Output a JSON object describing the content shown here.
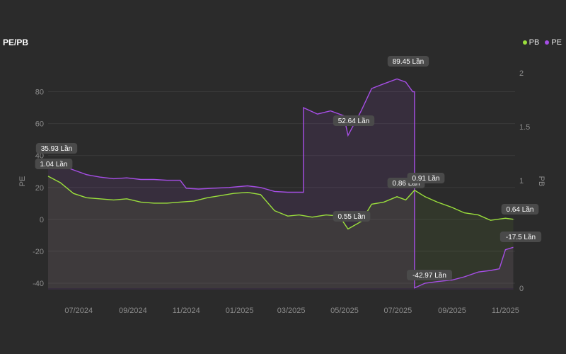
{
  "chart_data": {
    "type": "line",
    "title": "PE/PB",
    "legend": [
      {
        "name": "PB",
        "color": "#9be03c"
      },
      {
        "name": "PE",
        "color": "#a64ee6"
      }
    ],
    "legend_position": "top-right",
    "x_ticks": [
      "07/2024",
      "09/2024",
      "11/2024",
      "01/2025",
      "03/2025",
      "05/2025",
      "07/2025",
      "09/2025",
      "11/2025"
    ],
    "y_left": {
      "label": "PE",
      "ticks": [
        80,
        60,
        40,
        20,
        0,
        -20,
        -40
      ],
      "range": [
        -44,
        94
      ]
    },
    "y_right": {
      "label": "PB",
      "ticks": [
        2,
        1.5,
        1,
        0.5,
        0
      ],
      "range": [
        0,
        2
      ]
    },
    "series": [
      {
        "name": "PE",
        "axis": "left",
        "color": "#a64ee6",
        "x": [
          "2024-05-27",
          "2024-06-10",
          "2024-06-25",
          "2024-07-10",
          "2024-07-25",
          "2024-08-10",
          "2024-08-25",
          "2024-09-10",
          "2024-09-25",
          "2024-10-10",
          "2024-10-25",
          "2024-11-01",
          "2024-11-15",
          "2024-12-01",
          "2024-12-20",
          "2025-01-10",
          "2025-01-25",
          "2025-02-10",
          "2025-02-25",
          "2025-03-01",
          "2025-03-15",
          "2025-03-31",
          "2025-04-15",
          "2025-04-30",
          "2025-05-05",
          "2025-05-20",
          "2025-06-01",
          "2025-06-15",
          "2025-06-30",
          "2025-07-10",
          "2025-07-18",
          "2025-07-20",
          "2025-08-01",
          "2025-08-15",
          "2025-09-01",
          "2025-09-15",
          "2025-10-01",
          "2025-10-15",
          "2025-10-25",
          "2025-11-01",
          "2025-11-10"
        ],
        "values": [
          35.93,
          34,
          31,
          28,
          26.5,
          25.5,
          26,
          25,
          25,
          24.5,
          24.5,
          19.5,
          19,
          19.5,
          20,
          21,
          20,
          17.5,
          17,
          17,
          70,
          66,
          68,
          65,
          52.64,
          68,
          82,
          85,
          88,
          86,
          80,
          -42.97,
          -40,
          -39,
          -38,
          -36,
          -33,
          -32,
          -31,
          -19,
          -17.5
        ]
      },
      {
        "name": "PB",
        "axis": "right",
        "color": "#9be03c",
        "x": [
          "2024-05-27",
          "2024-06-10",
          "2024-06-25",
          "2024-07-10",
          "2024-07-25",
          "2024-08-10",
          "2024-08-25",
          "2024-09-10",
          "2024-09-25",
          "2024-10-10",
          "2024-10-25",
          "2024-11-10",
          "2024-11-25",
          "2024-12-10",
          "2024-12-25",
          "2025-01-10",
          "2025-01-25",
          "2025-02-10",
          "2025-02-25",
          "2025-03-10",
          "2025-03-25",
          "2025-04-10",
          "2025-04-25",
          "2025-05-05",
          "2025-05-20",
          "2025-06-01",
          "2025-06-15",
          "2025-06-30",
          "2025-07-10",
          "2025-07-20",
          "2025-08-01",
          "2025-08-15",
          "2025-09-01",
          "2025-09-15",
          "2025-10-01",
          "2025-10-15",
          "2025-11-01",
          "2025-11-10"
        ],
        "values": [
          1.04,
          0.98,
          0.88,
          0.84,
          0.83,
          0.82,
          0.83,
          0.8,
          0.79,
          0.79,
          0.8,
          0.81,
          0.84,
          0.86,
          0.88,
          0.89,
          0.87,
          0.72,
          0.67,
          0.68,
          0.66,
          0.68,
          0.67,
          0.55,
          0.62,
          0.78,
          0.8,
          0.85,
          0.82,
          0.91,
          0.85,
          0.8,
          0.75,
          0.7,
          0.68,
          0.63,
          0.65,
          0.64
        ]
      }
    ],
    "annotations": [
      {
        "series": "PE",
        "text": "35.93 Lần"
      },
      {
        "series": "PB",
        "text": "1.04 Lần"
      },
      {
        "series": "PE",
        "text": "89.45 Lần"
      },
      {
        "series": "PE",
        "text": "52.64 Lần"
      },
      {
        "series": "PB",
        "text": "0.55 Lần"
      },
      {
        "series": "PB",
        "text": "0.86 Lần"
      },
      {
        "series": "PB",
        "text": "0.91 Lần"
      },
      {
        "series": "PE",
        "text": "-42.97 Lần"
      },
      {
        "series": "PB",
        "text": "0.64 Lần"
      },
      {
        "series": "PE",
        "text": "-17.5 Lần"
      }
    ],
    "grid": true
  }
}
